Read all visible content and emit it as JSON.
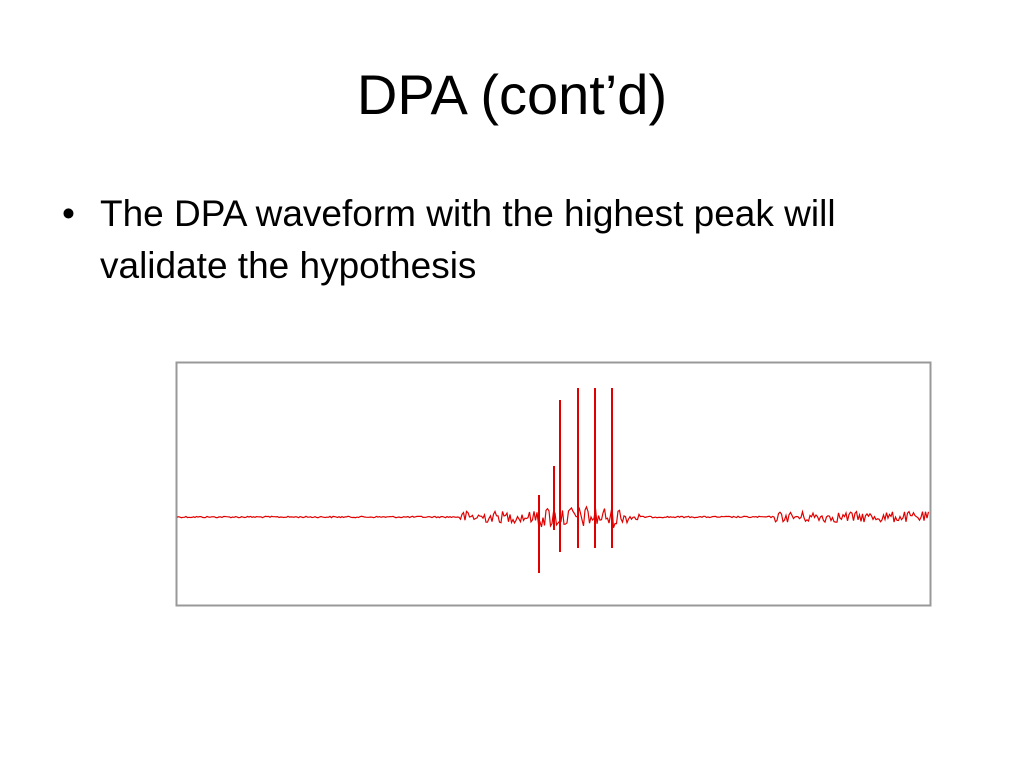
{
  "slide": {
    "title": "DPA (cont’d)",
    "bullets": [
      "The DPA waveform with the highest peak will validate the hypothesis"
    ]
  }
}
